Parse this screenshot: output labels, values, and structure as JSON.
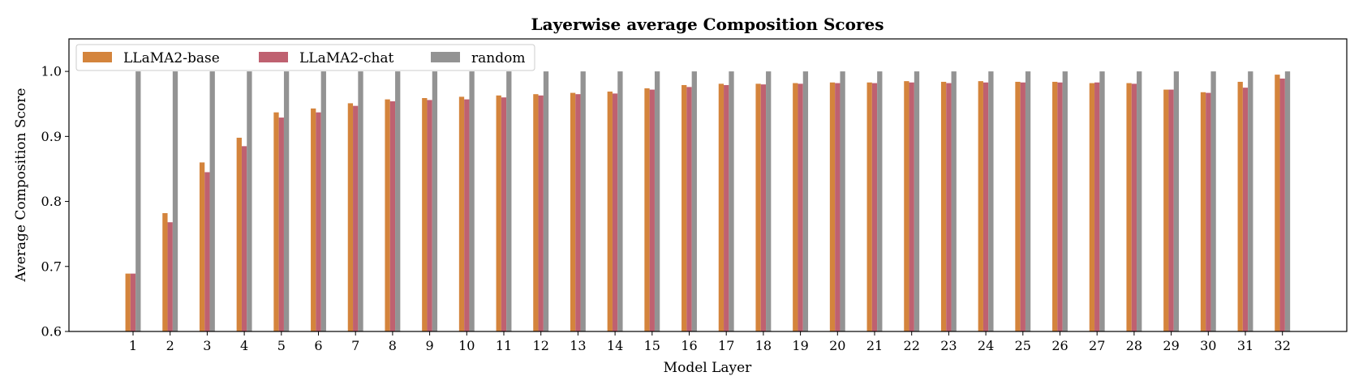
{
  "chart_data": {
    "type": "bar",
    "title": "Layerwise average Composition Scores",
    "xlabel": "Model Layer",
    "ylabel": "Average Composition Score",
    "ylim": [
      0.6,
      1.05
    ],
    "yticks": [
      "0.6",
      "0.7",
      "0.8",
      "0.9",
      "1.0"
    ],
    "legend_position": "top-left",
    "categories": [
      "1",
      "2",
      "3",
      "4",
      "5",
      "6",
      "7",
      "8",
      "9",
      "10",
      "11",
      "12",
      "13",
      "14",
      "15",
      "16",
      "17",
      "18",
      "19",
      "20",
      "21",
      "22",
      "23",
      "24",
      "25",
      "26",
      "27",
      "28",
      "29",
      "30",
      "31",
      "32"
    ],
    "series": [
      {
        "name": "LLaMA2-base",
        "color": "#d4843c",
        "values": [
          0.689,
          0.782,
          0.86,
          0.898,
          0.937,
          0.943,
          0.951,
          0.957,
          0.959,
          0.961,
          0.963,
          0.965,
          0.967,
          0.969,
          0.974,
          0.979,
          0.981,
          0.981,
          0.982,
          0.983,
          0.983,
          0.985,
          0.984,
          0.985,
          0.984,
          0.984,
          0.982,
          0.982,
          0.972,
          0.968,
          0.984,
          0.995
        ]
      },
      {
        "name": "LLaMA2-chat",
        "color": "#bf6170",
        "values": [
          0.689,
          0.768,
          0.845,
          0.885,
          0.929,
          0.937,
          0.947,
          0.954,
          0.956,
          0.957,
          0.96,
          0.963,
          0.965,
          0.966,
          0.972,
          0.976,
          0.979,
          0.98,
          0.981,
          0.982,
          0.982,
          0.983,
          0.982,
          0.983,
          0.983,
          0.983,
          0.983,
          0.981,
          0.972,
          0.967,
          0.975,
          0.989
        ]
      },
      {
        "name": "random",
        "color": "#939393",
        "values": [
          1.0,
          1.0,
          1.0,
          1.0,
          1.0,
          1.0,
          1.0,
          1.0,
          1.0,
          1.0,
          1.0,
          1.0,
          1.0,
          1.0,
          1.0,
          1.0,
          1.0,
          1.0,
          1.0,
          1.0,
          1.0,
          1.0,
          1.0,
          1.0,
          1.0,
          1.0,
          1.0,
          1.0,
          1.0,
          1.0,
          1.0,
          1.0
        ]
      }
    ]
  }
}
